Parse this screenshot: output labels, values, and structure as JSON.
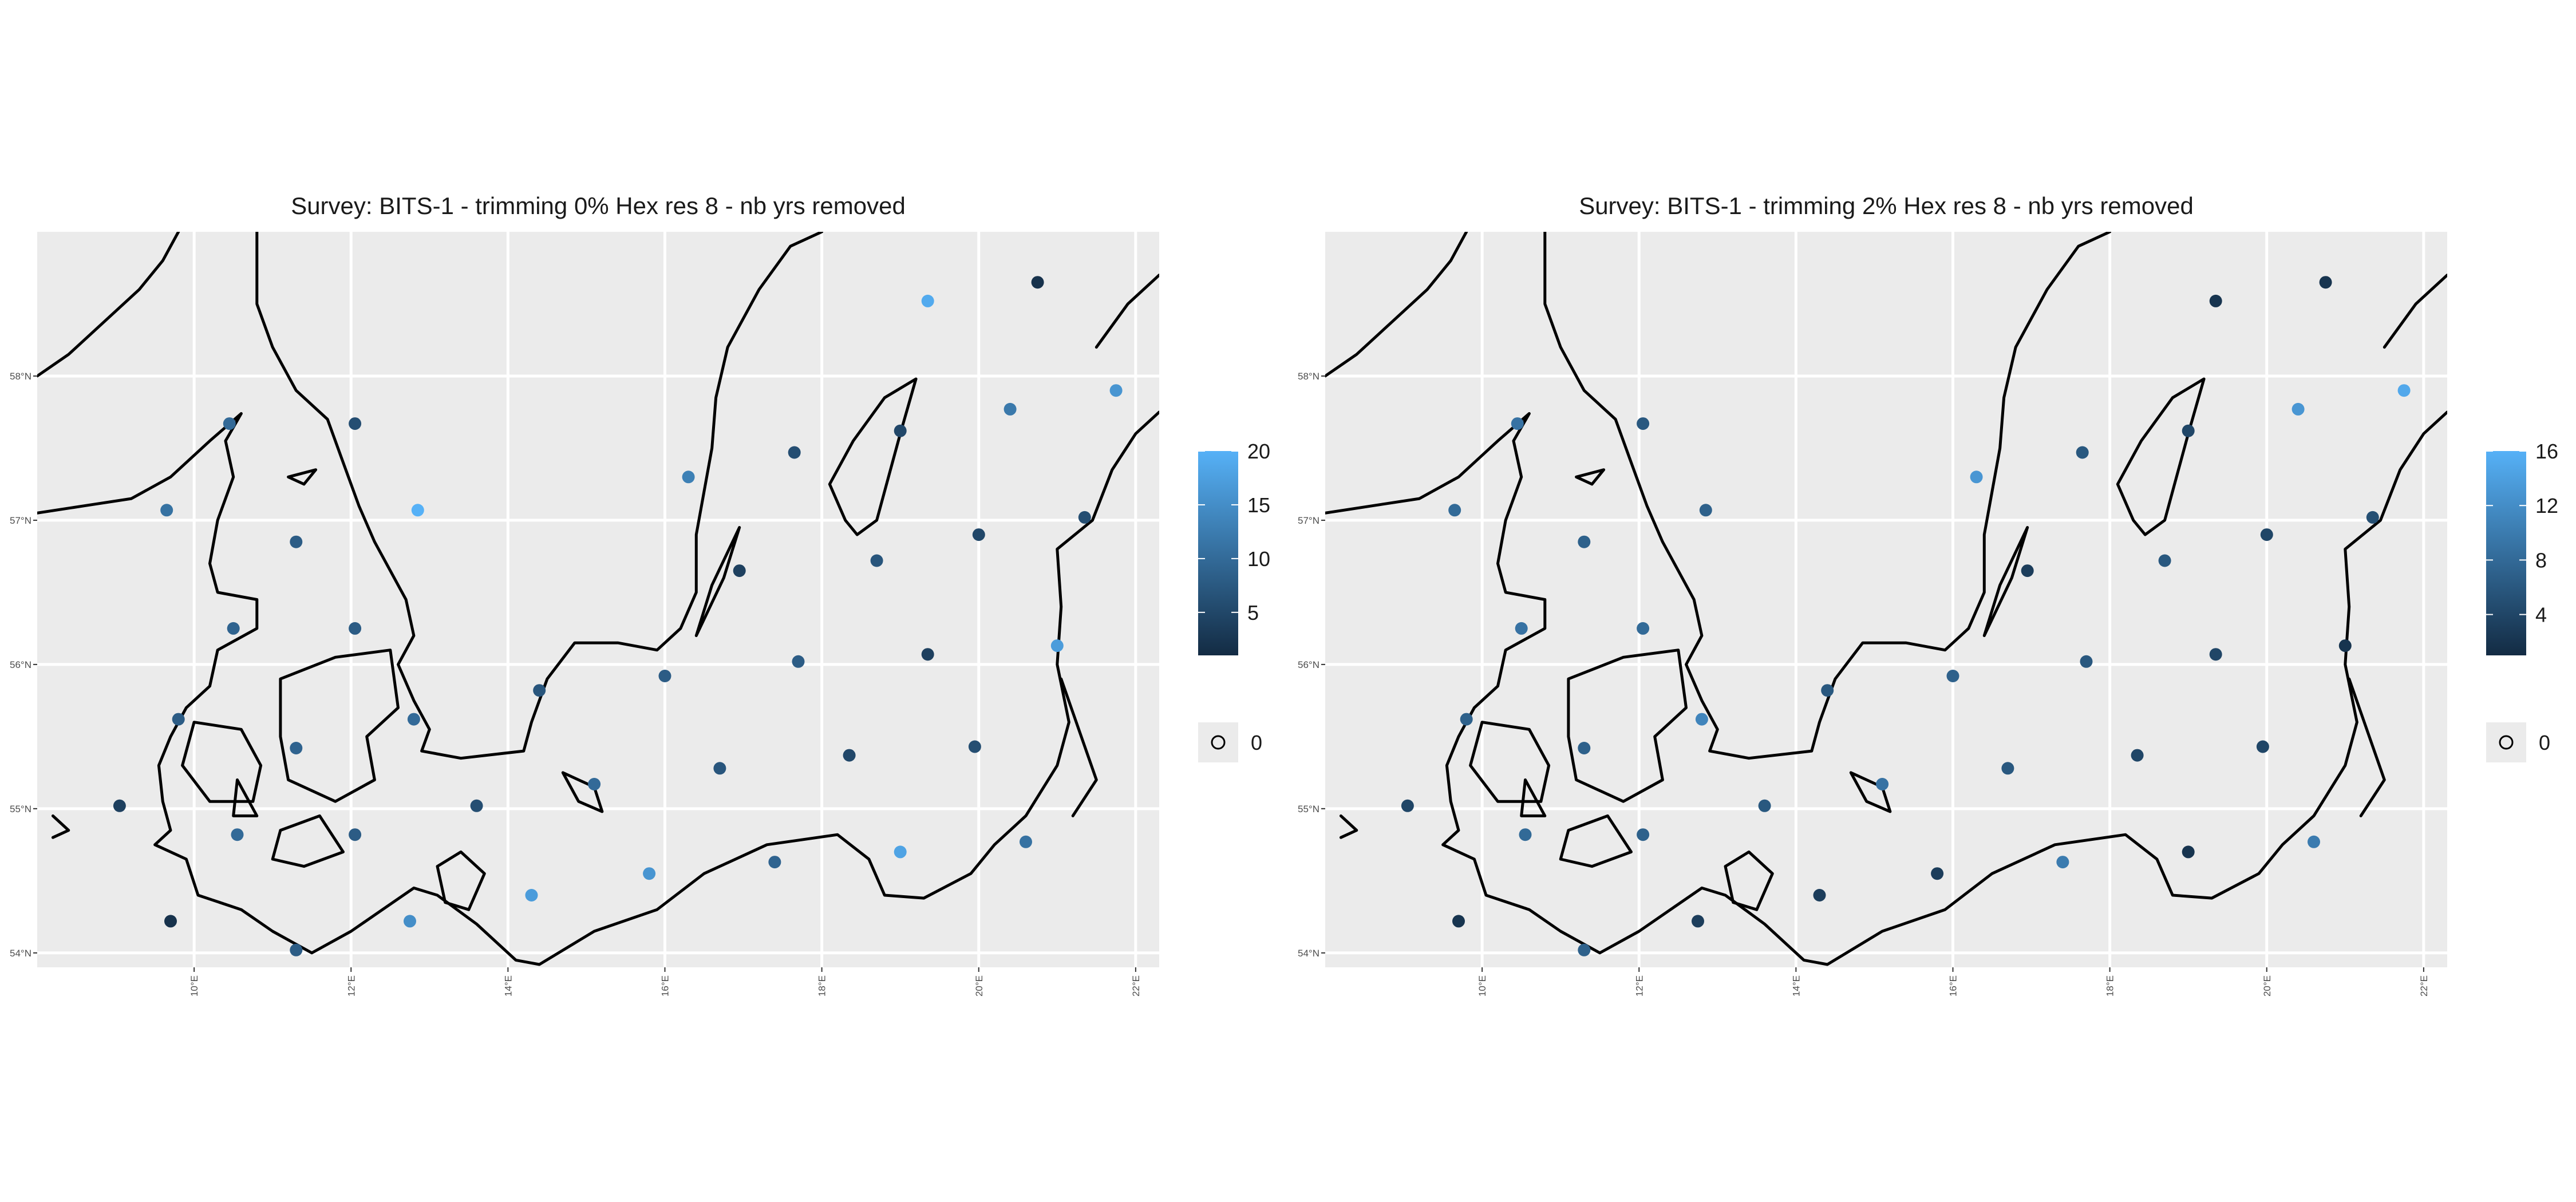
{
  "chart_data": [
    {
      "type": "scatter",
      "title": "Survey: BITS-1 - trimming 0% Hex res 8 - nb yrs removed",
      "x_ticks": [
        "10°E",
        "12°E",
        "14°E",
        "16°E",
        "18°E",
        "20°E",
        "22°E"
      ],
      "y_ticks": [
        "54°N",
        "55°N",
        "56°N",
        "57°N",
        "58°N"
      ],
      "xlim": [
        8.0,
        22.3
      ],
      "ylim": [
        53.9,
        59.0
      ],
      "grid": true,
      "legend": {
        "placement": "right",
        "gradient_labels": [
          "20",
          "15",
          "10",
          "5"
        ],
        "gradient_range": [
          1,
          20
        ],
        "gradient_colors": [
          "#132b43",
          "#56b1f7"
        ],
        "zero_label": "0"
      },
      "points": [
        {
          "lon": 19.35,
          "lat": 58.52,
          "v": 19
        },
        {
          "lon": 20.75,
          "lat": 58.65,
          "v": 2
        },
        {
          "lon": 10.45,
          "lat": 57.67,
          "v": 10
        },
        {
          "lon": 12.05,
          "lat": 57.67,
          "v": 6
        },
        {
          "lon": 20.4,
          "lat": 57.77,
          "v": 12
        },
        {
          "lon": 21.75,
          "lat": 57.9,
          "v": 16
        },
        {
          "lon": 9.65,
          "lat": 57.07,
          "v": 11
        },
        {
          "lon": 11.3,
          "lat": 56.85,
          "v": 8
        },
        {
          "lon": 12.85,
          "lat": 57.07,
          "v": 20
        },
        {
          "lon": 16.3,
          "lat": 57.3,
          "v": 13
        },
        {
          "lon": 17.65,
          "lat": 57.47,
          "v": 6
        },
        {
          "lon": 19.0,
          "lat": 57.62,
          "v": 5
        },
        {
          "lon": 20.0,
          "lat": 56.9,
          "v": 5
        },
        {
          "lon": 21.35,
          "lat": 57.02,
          "v": 6
        },
        {
          "lon": 18.7,
          "lat": 56.72,
          "v": 7
        },
        {
          "lon": 16.95,
          "lat": 56.65,
          "v": 4
        },
        {
          "lon": 10.5,
          "lat": 56.25,
          "v": 9
        },
        {
          "lon": 12.05,
          "lat": 56.25,
          "v": 8
        },
        {
          "lon": 19.35,
          "lat": 56.07,
          "v": 4
        },
        {
          "lon": 21.0,
          "lat": 56.13,
          "v": 17
        },
        {
          "lon": 17.7,
          "lat": 56.02,
          "v": 8
        },
        {
          "lon": 16.0,
          "lat": 55.92,
          "v": 8
        },
        {
          "lon": 14.4,
          "lat": 55.82,
          "v": 7
        },
        {
          "lon": 9.8,
          "lat": 55.62,
          "v": 8
        },
        {
          "lon": 11.3,
          "lat": 55.42,
          "v": 9
        },
        {
          "lon": 12.8,
          "lat": 55.62,
          "v": 10
        },
        {
          "lon": 18.35,
          "lat": 55.37,
          "v": 5
        },
        {
          "lon": 19.95,
          "lat": 55.43,
          "v": 6
        },
        {
          "lon": 16.7,
          "lat": 55.28,
          "v": 7
        },
        {
          "lon": 15.1,
          "lat": 55.17,
          "v": 10
        },
        {
          "lon": 9.05,
          "lat": 55.02,
          "v": 4
        },
        {
          "lon": 13.6,
          "lat": 55.02,
          "v": 6
        },
        {
          "lon": 10.55,
          "lat": 54.82,
          "v": 10
        },
        {
          "lon": 12.05,
          "lat": 54.82,
          "v": 8
        },
        {
          "lon": 20.6,
          "lat": 54.77,
          "v": 11
        },
        {
          "lon": 19.0,
          "lat": 54.7,
          "v": 18
        },
        {
          "lon": 17.4,
          "lat": 54.63,
          "v": 9
        },
        {
          "lon": 15.8,
          "lat": 54.55,
          "v": 16
        },
        {
          "lon": 14.3,
          "lat": 54.4,
          "v": 17
        },
        {
          "lon": 9.7,
          "lat": 54.22,
          "v": 2
        },
        {
          "lon": 12.75,
          "lat": 54.22,
          "v": 15
        },
        {
          "lon": 11.3,
          "lat": 54.02,
          "v": 8
        }
      ]
    },
    {
      "type": "scatter",
      "title": "Survey: BITS-1 - trimming 2% Hex res 8 - nb yrs removed",
      "x_ticks": [
        "10°E",
        "12°E",
        "14°E",
        "16°E",
        "18°E",
        "20°E",
        "22°E"
      ],
      "y_ticks": [
        "54°N",
        "55°N",
        "56°N",
        "57°N",
        "58°N"
      ],
      "xlim": [
        8.0,
        22.3
      ],
      "ylim": [
        53.9,
        59.0
      ],
      "grid": true,
      "legend": {
        "placement": "right",
        "gradient_labels": [
          "16",
          "12",
          "8",
          "4"
        ],
        "gradient_range": [
          1,
          16
        ],
        "gradient_colors": [
          "#132b43",
          "#56b1f7"
        ],
        "zero_label": "0"
      },
      "points": [
        {
          "lon": 19.35,
          "lat": 58.52,
          "v": 2
        },
        {
          "lon": 20.75,
          "lat": 58.65,
          "v": 2
        },
        {
          "lon": 10.45,
          "lat": 57.67,
          "v": 9
        },
        {
          "lon": 12.05,
          "lat": 57.67,
          "v": 6
        },
        {
          "lon": 20.4,
          "lat": 57.77,
          "v": 13
        },
        {
          "lon": 21.75,
          "lat": 57.9,
          "v": 15
        },
        {
          "lon": 9.65,
          "lat": 57.07,
          "v": 8
        },
        {
          "lon": 11.3,
          "lat": 56.85,
          "v": 7
        },
        {
          "lon": 12.85,
          "lat": 57.07,
          "v": 7
        },
        {
          "lon": 16.3,
          "lat": 57.3,
          "v": 13
        },
        {
          "lon": 17.65,
          "lat": 57.47,
          "v": 6
        },
        {
          "lon": 19.0,
          "lat": 57.62,
          "v": 4
        },
        {
          "lon": 20.0,
          "lat": 56.9,
          "v": 4
        },
        {
          "lon": 21.35,
          "lat": 57.02,
          "v": 5
        },
        {
          "lon": 18.7,
          "lat": 56.72,
          "v": 6
        },
        {
          "lon": 16.95,
          "lat": 56.65,
          "v": 3
        },
        {
          "lon": 10.5,
          "lat": 56.25,
          "v": 9
        },
        {
          "lon": 12.05,
          "lat": 56.25,
          "v": 8
        },
        {
          "lon": 19.35,
          "lat": 56.07,
          "v": 4
        },
        {
          "lon": 21.0,
          "lat": 56.13,
          "v": 2
        },
        {
          "lon": 17.7,
          "lat": 56.02,
          "v": 6
        },
        {
          "lon": 16.0,
          "lat": 55.92,
          "v": 7
        },
        {
          "lon": 14.4,
          "lat": 55.82,
          "v": 6
        },
        {
          "lon": 9.8,
          "lat": 55.62,
          "v": 7
        },
        {
          "lon": 11.3,
          "lat": 55.42,
          "v": 7
        },
        {
          "lon": 12.8,
          "lat": 55.62,
          "v": 11
        },
        {
          "lon": 18.35,
          "lat": 55.37,
          "v": 4
        },
        {
          "lon": 19.95,
          "lat": 55.43,
          "v": 4
        },
        {
          "lon": 16.7,
          "lat": 55.28,
          "v": 6
        },
        {
          "lon": 15.1,
          "lat": 55.17,
          "v": 9
        },
        {
          "lon": 9.05,
          "lat": 55.02,
          "v": 4
        },
        {
          "lon": 13.6,
          "lat": 55.02,
          "v": 6
        },
        {
          "lon": 10.55,
          "lat": 54.82,
          "v": 8
        },
        {
          "lon": 12.05,
          "lat": 54.82,
          "v": 7
        },
        {
          "lon": 20.6,
          "lat": 54.77,
          "v": 10
        },
        {
          "lon": 19.0,
          "lat": 54.7,
          "v": 2
        },
        {
          "lon": 17.4,
          "lat": 54.63,
          "v": 10
        },
        {
          "lon": 15.8,
          "lat": 54.55,
          "v": 3
        },
        {
          "lon": 14.3,
          "lat": 54.4,
          "v": 3
        },
        {
          "lon": 9.7,
          "lat": 54.22,
          "v": 2
        },
        {
          "lon": 12.75,
          "lat": 54.22,
          "v": 3
        },
        {
          "lon": 11.3,
          "lat": 54.02,
          "v": 7
        }
      ]
    }
  ]
}
